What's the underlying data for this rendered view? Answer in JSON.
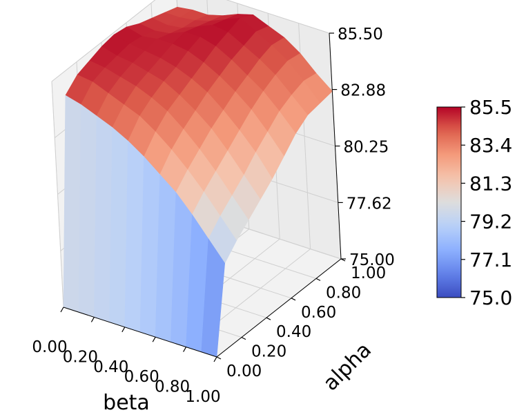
{
  "chart_data": {
    "type": "surface",
    "xlabel": "beta",
    "ylabel": "alpha",
    "zlabel": "",
    "x": [
      0.0,
      0.1,
      0.2,
      0.3,
      0.4,
      0.5,
      0.6,
      0.7,
      0.8,
      0.9,
      1.0
    ],
    "y": [
      0.0,
      0.1,
      0.2,
      0.3,
      0.4,
      0.5,
      0.6,
      0.7,
      0.8,
      0.9,
      1.0
    ],
    "xlim": [
      0,
      1
    ],
    "ylim": [
      0,
      1
    ],
    "zlim": [
      75,
      85.5
    ],
    "x_ticks": [
      "0.00",
      "0.20",
      "0.40",
      "0.60",
      "0.80",
      "1.00"
    ],
    "y_ticks": [
      "0.00",
      "0.20",
      "0.40",
      "0.60",
      "0.80",
      "1.00"
    ],
    "z_ticks": [
      "75.00",
      "77.62",
      "80.25",
      "82.88",
      "85.50"
    ],
    "colorbar_ticks": [
      "75.0",
      "77.1",
      "79.2",
      "81.3",
      "83.4",
      "85.5"
    ],
    "colormap": "coolwarm",
    "z_baseline_note": "values at alpha=0 are 75.0",
    "z_matrix_rows_alpha_cols_beta": [
      [
        75.0,
        75.0,
        75.0,
        75.0,
        75.0,
        75.0,
        75.0,
        75.0,
        75.0,
        75.0,
        75.0
      ],
      [
        84.4,
        84.2,
        83.9,
        83.6,
        83.2,
        82.7,
        82.1,
        81.5,
        80.7,
        79.8,
        78.9
      ],
      [
        84.9,
        84.8,
        84.5,
        84.2,
        83.9,
        83.4,
        82.8,
        82.1,
        81.3,
        80.4,
        79.5
      ],
      [
        85.1,
        85.0,
        84.8,
        84.6,
        84.3,
        83.9,
        83.3,
        82.6,
        81.8,
        80.9,
        80.0
      ],
      [
        85.3,
        85.1,
        85.0,
        84.8,
        84.6,
        84.2,
        83.7,
        83.1,
        82.3,
        81.4,
        80.5
      ],
      [
        85.4,
        85.2,
        85.1,
        85.0,
        84.8,
        84.5,
        84.1,
        83.5,
        82.8,
        82.0,
        81.0
      ],
      [
        85.3,
        85.1,
        85.2,
        85.2,
        85.1,
        84.8,
        84.4,
        83.9,
        83.3,
        82.5,
        81.6
      ],
      [
        85.0,
        84.9,
        85.0,
        85.3,
        85.3,
        85.1,
        84.7,
        84.2,
        83.7,
        83.0,
        82.2
      ],
      [
        84.8,
        84.7,
        84.8,
        85.1,
        85.4,
        85.3,
        84.9,
        84.5,
        84.0,
        83.3,
        82.6
      ],
      [
        84.6,
        84.6,
        84.7,
        84.9,
        85.2,
        85.5,
        85.1,
        84.7,
        84.2,
        83.5,
        82.7
      ],
      [
        84.4,
        84.5,
        84.5,
        84.7,
        85.0,
        85.2,
        84.9,
        84.6,
        84.1,
        83.4,
        82.8
      ]
    ],
    "grid": true
  }
}
